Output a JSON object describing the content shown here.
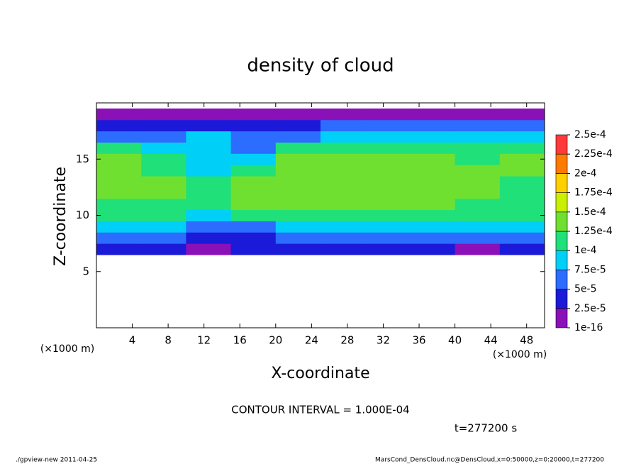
{
  "chart_data": {
    "type": "contour",
    "title": "density of cloud",
    "x_label": "X-coordinate",
    "y_label": "Z-coordinate",
    "x_unit": "(×1000 m)",
    "y_unit": "(×1000 m)",
    "annotation": "CONTOUR INTERVAL = 1.000E-04",
    "time": "t=277200 s",
    "footer_left": "./gpview-new   2011-04-25",
    "footer_right": "MarsCond_DensCloud.nc@DensCloud,x=0:50000,z=0:20000,t=277200",
    "xlim": [
      0,
      50
    ],
    "ylim": [
      0,
      20
    ],
    "xticks": [
      4,
      8,
      12,
      16,
      20,
      24,
      28,
      32,
      36,
      40,
      44,
      48
    ],
    "yticks": [
      5,
      10,
      15
    ],
    "x": [
      2.5,
      7.5,
      12.5,
      17.5,
      22.5,
      27.5,
      32.5,
      37.5,
      42.5,
      47.5
    ],
    "z": [
      7,
      8,
      9,
      10,
      11,
      12,
      13,
      14,
      15,
      16,
      17,
      18,
      19
    ],
    "values": [
      [
        3e-05,
        3e-05,
        2e-05,
        2.5e-05,
        3e-05,
        3e-05,
        3e-05,
        3e-05,
        2e-05,
        3e-05
      ],
      [
        6e-05,
        6e-05,
        4e-05,
        4e-05,
        6e-05,
        6e-05,
        6e-05,
        6e-05,
        6e-05,
        6e-05
      ],
      [
        9e-05,
        8.5e-05,
        7e-05,
        7e-05,
        9e-05,
        9e-05,
        9e-05,
        9e-05,
        8e-05,
        9e-05
      ],
      [
        0.00011,
        0.000105,
        9.5e-05,
        0.0001,
        0.000115,
        0.000115,
        0.000115,
        0.000115,
        0.000105,
        0.00011
      ],
      [
        0.00012,
        0.00012,
        0.000115,
        0.000125,
        0.00013,
        0.00013,
        0.00013,
        0.00013,
        0.00012,
        0.000115
      ],
      [
        0.00013,
        0.00013,
        0.00012,
        0.000135,
        0.00014,
        0.00014,
        0.00014,
        0.00014,
        0.000125,
        0.00011
      ],
      [
        0.000135,
        0.00013,
        0.00012,
        0.00013,
        0.000145,
        0.000145,
        0.000145,
        0.00014,
        0.00013,
        0.00012
      ],
      [
        0.00013,
        0.00012,
        8e-05,
        0.00011,
        0.00014,
        0.000145,
        0.00014,
        0.000135,
        0.000125,
        0.000135
      ],
      [
        0.000125,
        0.000115,
        9e-05,
        8e-05,
        0.000125,
        0.00013,
        0.00013,
        0.000125,
        0.000115,
        0.00013
      ],
      [
        0.000105,
        9e-05,
        8e-05,
        6.5e-05,
        0.000105,
        0.00011,
        0.00011,
        0.00011,
        0.000105,
        0.00011
      ],
      [
        7e-05,
        7e-05,
        7.5e-05,
        5e-05,
        7e-05,
        9e-05,
        9e-05,
        9e-05,
        9e-05,
        9e-05
      ],
      [
        4e-05,
        3e-05,
        4e-05,
        3.5e-05,
        4e-05,
        5e-05,
        5e-05,
        5e-05,
        5e-05,
        5e-05
      ],
      [
        2e-05,
        2e-05,
        2e-05,
        2e-05,
        2e-05,
        2e-05,
        2e-05,
        2e-05,
        2e-05,
        2e-05
      ]
    ],
    "levels": [
      {
        "value": 1e-16,
        "label": "1e-16"
      },
      {
        "value": 2.5e-05,
        "label": "2.5e-5"
      },
      {
        "value": 5e-05,
        "label": "5e-5"
      },
      {
        "value": 7.5e-05,
        "label": "7.5e-5"
      },
      {
        "value": 0.0001,
        "label": "1e-4"
      },
      {
        "value": 0.000125,
        "label": "1.25e-4"
      },
      {
        "value": 0.00015,
        "label": "1.5e-4"
      },
      {
        "value": 0.000175,
        "label": "1.75e-4"
      },
      {
        "value": 0.0002,
        "label": "2e-4"
      },
      {
        "value": 0.000225,
        "label": "2.25e-4"
      },
      {
        "value": 0.00025,
        "label": "2.5e-4"
      }
    ],
    "colors": [
      "#8a10b8",
      "#1a1ad8",
      "#2c6cff",
      "#00d0f8",
      "#20e07a",
      "#70e030",
      "#c8f000",
      "#ffd000",
      "#ff7a00",
      "#ff3a3a"
    ]
  }
}
